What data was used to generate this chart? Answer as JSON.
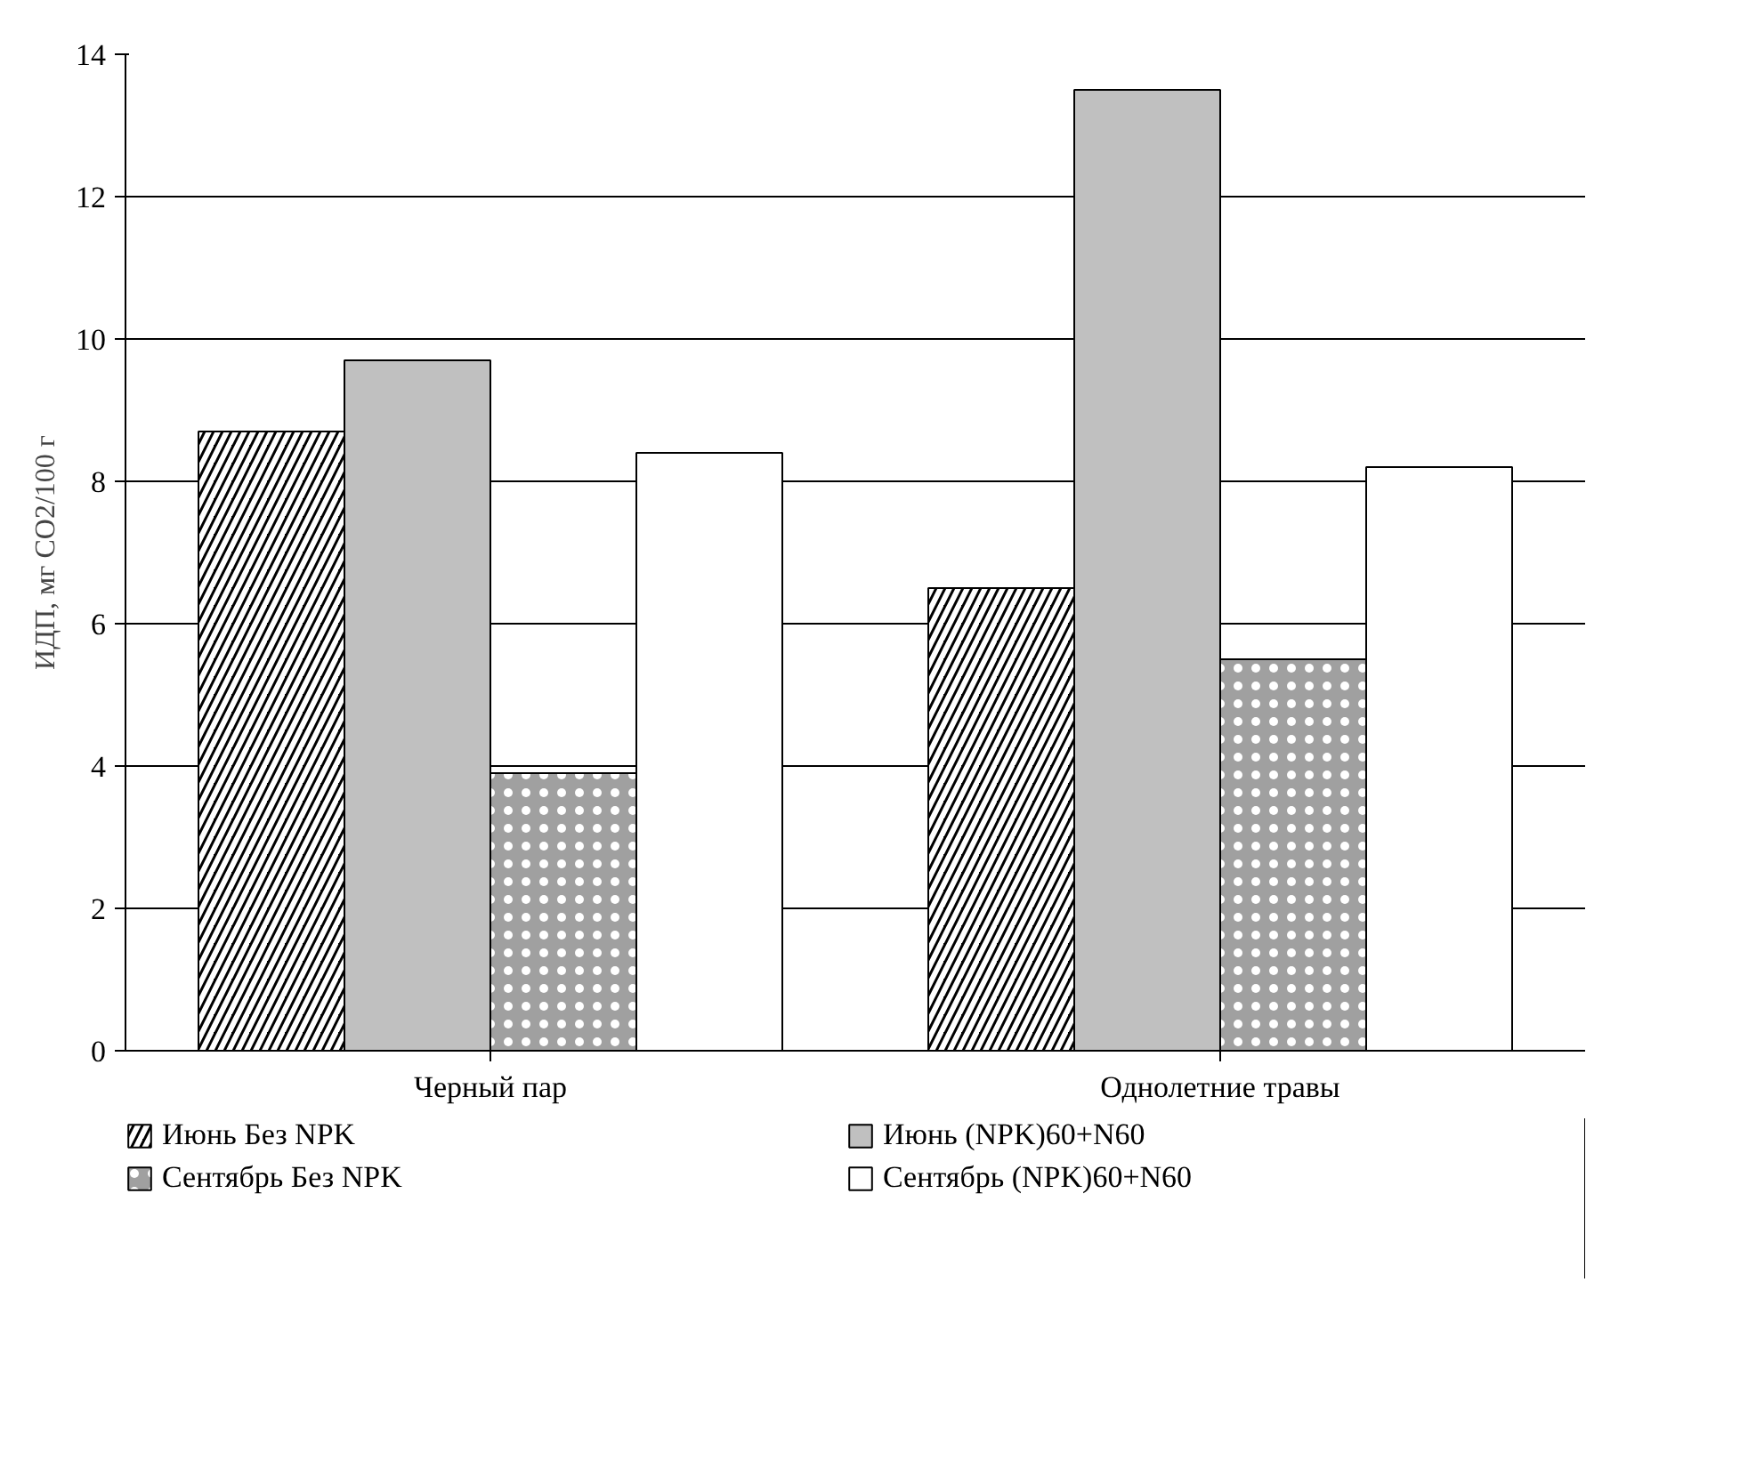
{
  "chart_data": {
    "type": "bar",
    "ylabel": "ИДП, мг СО2/100 г",
    "categories": [
      "Черный пар",
      "Однолетние травы"
    ],
    "series": [
      {
        "name": "Июнь Без NPK",
        "color": "#000000",
        "values": [
          8.7,
          6.5
        ]
      },
      {
        "name": "Июнь (NPK)60+N60",
        "color": "#c0c0c0",
        "values": [
          9.7,
          13.5
        ]
      },
      {
        "name": "Сентябрь Без NPK",
        "color": "#a0a0a0",
        "values": [
          3.9,
          5.5
        ]
      },
      {
        "name": "Сентябрь (NPK)60+N60",
        "color": "#ffffff",
        "values": [
          8.4,
          8.2
        ]
      }
    ],
    "ylim": [
      0,
      14
    ],
    "yticks": [
      0,
      2,
      4,
      6,
      8,
      10,
      12,
      14
    ],
    "grid": "y",
    "legend": "bottom"
  }
}
